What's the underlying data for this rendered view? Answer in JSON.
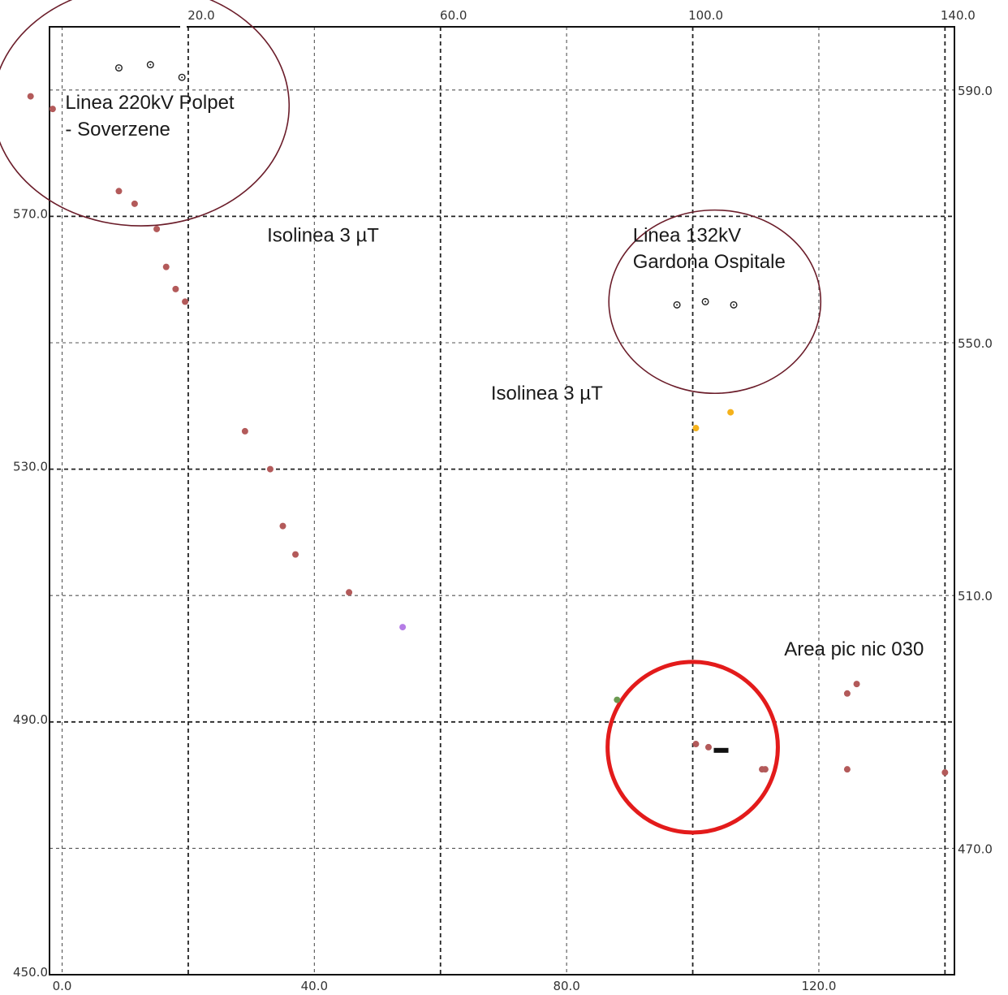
{
  "chart_data": {
    "type": "scatter",
    "title": "",
    "xlabel": "",
    "ylabel": "",
    "xlim": [
      -2.0,
      141.5
    ],
    "ylim": [
      450.0,
      600.0
    ],
    "grid": true,
    "x_ticks_bottom": [
      "0.0",
      "40.0",
      "80.0",
      "120.0"
    ],
    "x_ticks_top": [
      "20.0",
      "60.0",
      "100.0",
      "140.0"
    ],
    "y_ticks_left": [
      "450.0",
      "490.0",
      "530.0",
      "570.0"
    ],
    "y_ticks_right": [
      "470.0",
      "510.0",
      "550.0",
      "590.0"
    ],
    "series": [
      {
        "color": "#b35a5a",
        "marker": "filled-dot",
        "points": [
          {
            "x": -5.0,
            "y": 589.0
          },
          {
            "x": -1.5,
            "y": 587.0
          },
          {
            "x": 9.0,
            "y": 574.0
          },
          {
            "x": 11.5,
            "y": 572.0
          },
          {
            "x": 15.0,
            "y": 568.0
          },
          {
            "x": 16.5,
            "y": 562.0
          },
          {
            "x": 18.0,
            "y": 558.5
          },
          {
            "x": 19.5,
            "y": 556.5
          },
          {
            "x": 29.0,
            "y": 536.0
          },
          {
            "x": 33.0,
            "y": 530.0
          },
          {
            "x": 35.0,
            "y": 521.0
          },
          {
            "x": 37.0,
            "y": 516.5
          },
          {
            "x": 45.5,
            "y": 510.5
          },
          {
            "x": 100.5,
            "y": 486.5
          },
          {
            "x": 102.5,
            "y": 486.0
          },
          {
            "x": 111.0,
            "y": 482.5
          },
          {
            "x": 111.5,
            "y": 482.5
          },
          {
            "x": 124.5,
            "y": 494.5
          },
          {
            "x": 126.0,
            "y": 496.0
          },
          {
            "x": 124.5,
            "y": 482.5
          },
          {
            "x": 140.0,
            "y": 482.0
          }
        ]
      },
      {
        "color": "#f5b21b",
        "marker": "filled-dot",
        "points": [
          {
            "x": 100.5,
            "y": 536.5
          },
          {
            "x": 106.0,
            "y": 539.0
          }
        ]
      },
      {
        "color": "#b57ce6",
        "marker": "filled-dot",
        "points": [
          {
            "x": 54.0,
            "y": 505.0
          }
        ]
      },
      {
        "color": "#6c9a52",
        "marker": "filled-dot",
        "points": [
          {
            "x": 88.0,
            "y": 493.5
          }
        ]
      },
      {
        "color": "#111111",
        "marker": "dash",
        "points": [
          {
            "x": 104.5,
            "y": 485.5
          }
        ]
      },
      {
        "color": "#222222",
        "marker": "open-diamond",
        "points": [
          {
            "x": 9.0,
            "y": 593.5
          },
          {
            "x": 14.0,
            "y": 594.0
          },
          {
            "x": 19.0,
            "y": 592.0
          },
          {
            "x": 97.5,
            "y": 556.0
          },
          {
            "x": 102.0,
            "y": 556.5
          },
          {
            "x": 106.5,
            "y": 556.0
          }
        ]
      }
    ],
    "circles": [
      {
        "cx": 12.5,
        "cy": 587.5,
        "rx": 23.5,
        "ry": 19.0,
        "color": "#6b1d2a",
        "width": 1.6
      },
      {
        "cx": 103.5,
        "cy": 556.5,
        "rx": 16.8,
        "ry": 14.5,
        "color": "#6b1d2a",
        "width": 1.6
      },
      {
        "cx": 100.0,
        "cy": 486.0,
        "rx": 13.5,
        "ry": 13.5,
        "color": "#e31b1b",
        "width": 5
      }
    ],
    "annotations": [
      {
        "text": "Linea 220kV Polpet",
        "x": 0.5,
        "y": 587.0
      },
      {
        "text": "- Soverzene",
        "x": 0.5,
        "y": 582.8
      },
      {
        "text": "Isolinea 3 µT",
        "x": 32.5,
        "y": 566.0
      },
      {
        "text": "Linea 132kV",
        "x": 90.5,
        "y": 566.0
      },
      {
        "text": "Gardona Ospitale",
        "x": 90.5,
        "y": 561.8
      },
      {
        "text": "Isolinea 3 µT",
        "x": 68.0,
        "y": 541.0
      },
      {
        "text": "Area pic nic 030",
        "x": 114.5,
        "y": 500.5
      }
    ]
  }
}
